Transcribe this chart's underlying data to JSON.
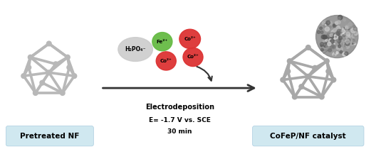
{
  "bg_color": "#ffffff",
  "arrow_color": "#333333",
  "label_pretreated": "Pretreated NF",
  "label_cofep": "CoFeP/NF catalyst",
  "label_electrodeposition": "Electrodeposition",
  "label_E": "E= -1.7 V vs. SCE",
  "label_30min": "30 min",
  "h2po4_color": "#cccccc",
  "fe2_color": "#66bb44",
  "co2_color_1": "#dd3333",
  "co2_color_2": "#dd3333",
  "co2_color_3": "#dd3333",
  "label_h2po4": "H₂PO₄⁻",
  "label_fe2": "Fe²⁺",
  "label_co2_1": "Co²⁺",
  "label_co2_2": "Co²⁺",
  "label_co2_3": "Co²⁺",
  "label_box_color": "#d0e8f0",
  "figsize": [
    5.42,
    2.1
  ],
  "dpi": 100
}
